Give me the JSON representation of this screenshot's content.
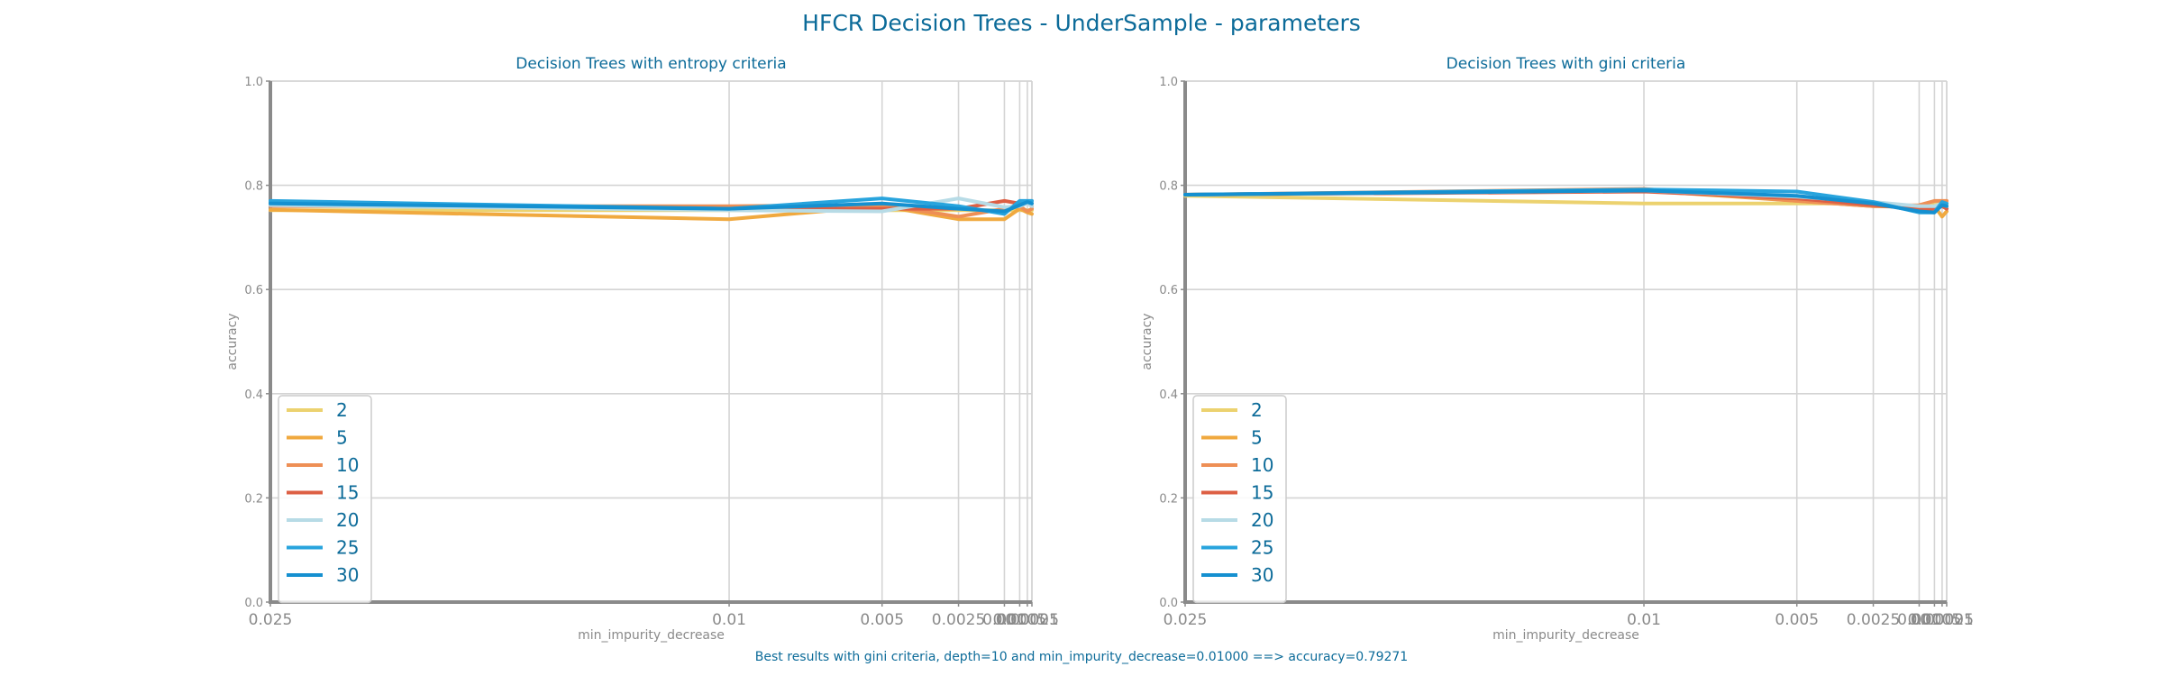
{
  "figure": {
    "title": "HFCR Decision Trees - UnderSample - parameters",
    "footer": "Best results with gini criteria, depth=10 and min_impurity_decrease=0.01000 ==> accuracy=0.79271"
  },
  "colors": {
    "title": "#0c6b99",
    "grid": "#d4d4d4",
    "axis": "#8a8a8a",
    "series": [
      "#ecd26f",
      "#f0a93f",
      "#ee8f55",
      "#dd5f44",
      "#b7dbe6",
      "#28a4dd",
      "#1590d0"
    ]
  },
  "chart_data": [
    {
      "type": "line",
      "title": "Decision Trees with entropy criteria",
      "xlabel": "min_impurity_decrease",
      "ylabel": "accuracy",
      "ylim": [
        0,
        1
      ],
      "yticks": [
        "0.0",
        "0.2",
        "0.4",
        "0.6",
        "0.8",
        "1.0"
      ],
      "x": [
        0.025,
        0.01,
        0.005,
        0.0025,
        0.001,
        0.0005,
        0.00025,
        0.0001
      ],
      "xtick_labels": [
        "0.025",
        "0.01",
        "0.005",
        "0.0025",
        "0.001",
        "0.0005",
        "0.00025",
        "0.0001"
      ],
      "grid": true,
      "legend_position": "lower-left",
      "series": [
        {
          "name": "2",
          "values": [
            0.752,
            0.752,
            0.752,
            0.752,
            0.752,
            0.752,
            0.752,
            0.752
          ]
        },
        {
          "name": "5",
          "values": [
            0.753,
            0.735,
            0.76,
            0.735,
            0.735,
            0.755,
            0.748,
            0.745
          ]
        },
        {
          "name": "10",
          "values": [
            0.76,
            0.76,
            0.762,
            0.74,
            0.755,
            0.76,
            0.75,
            0.755
          ]
        },
        {
          "name": "15",
          "values": [
            0.762,
            0.755,
            0.755,
            0.755,
            0.77,
            0.765,
            0.77,
            0.76
          ]
        },
        {
          "name": "20",
          "values": [
            0.762,
            0.752,
            0.75,
            0.775,
            0.758,
            0.76,
            0.765,
            0.76
          ]
        },
        {
          "name": "25",
          "values": [
            0.77,
            0.755,
            0.775,
            0.76,
            0.745,
            0.77,
            0.77,
            0.77
          ]
        },
        {
          "name": "30",
          "values": [
            0.765,
            0.755,
            0.765,
            0.755,
            0.75,
            0.762,
            0.768,
            0.765
          ]
        }
      ]
    },
    {
      "type": "line",
      "title": "Decision Trees with gini criteria",
      "xlabel": "min_impurity_decrease",
      "ylabel": "accuracy",
      "ylim": [
        0,
        1
      ],
      "yticks": [
        "0.0",
        "0.2",
        "0.4",
        "0.6",
        "0.8",
        "1.0"
      ],
      "x": [
        0.025,
        0.01,
        0.005,
        0.0025,
        0.001,
        0.0005,
        0.00025,
        0.0001
      ],
      "xtick_labels": [
        "0.025",
        "0.01",
        "0.005",
        "0.0025",
        "0.001",
        "0.0005",
        "0.00025",
        "0.0001"
      ],
      "grid": true,
      "legend_position": "lower-left",
      "series": [
        {
          "name": "2",
          "values": [
            0.78,
            0.765,
            0.765,
            0.765,
            0.76,
            0.765,
            0.765,
            0.765
          ]
        },
        {
          "name": "5",
          "values": [
            0.782,
            0.79,
            0.77,
            0.76,
            0.758,
            0.76,
            0.74,
            0.75
          ]
        },
        {
          "name": "10",
          "values": [
            0.782,
            0.793,
            0.77,
            0.76,
            0.762,
            0.77,
            0.77,
            0.77
          ]
        },
        {
          "name": "15",
          "values": [
            0.782,
            0.788,
            0.775,
            0.762,
            0.755,
            0.755,
            0.76,
            0.755
          ]
        },
        {
          "name": "20",
          "values": [
            0.782,
            0.79,
            0.778,
            0.768,
            0.76,
            0.76,
            0.765,
            0.76
          ]
        },
        {
          "name": "25",
          "values": [
            0.782,
            0.792,
            0.788,
            0.768,
            0.748,
            0.748,
            0.768,
            0.765
          ]
        },
        {
          "name": "30",
          "values": [
            0.782,
            0.79,
            0.78,
            0.765,
            0.75,
            0.748,
            0.762,
            0.76
          ]
        }
      ]
    }
  ]
}
